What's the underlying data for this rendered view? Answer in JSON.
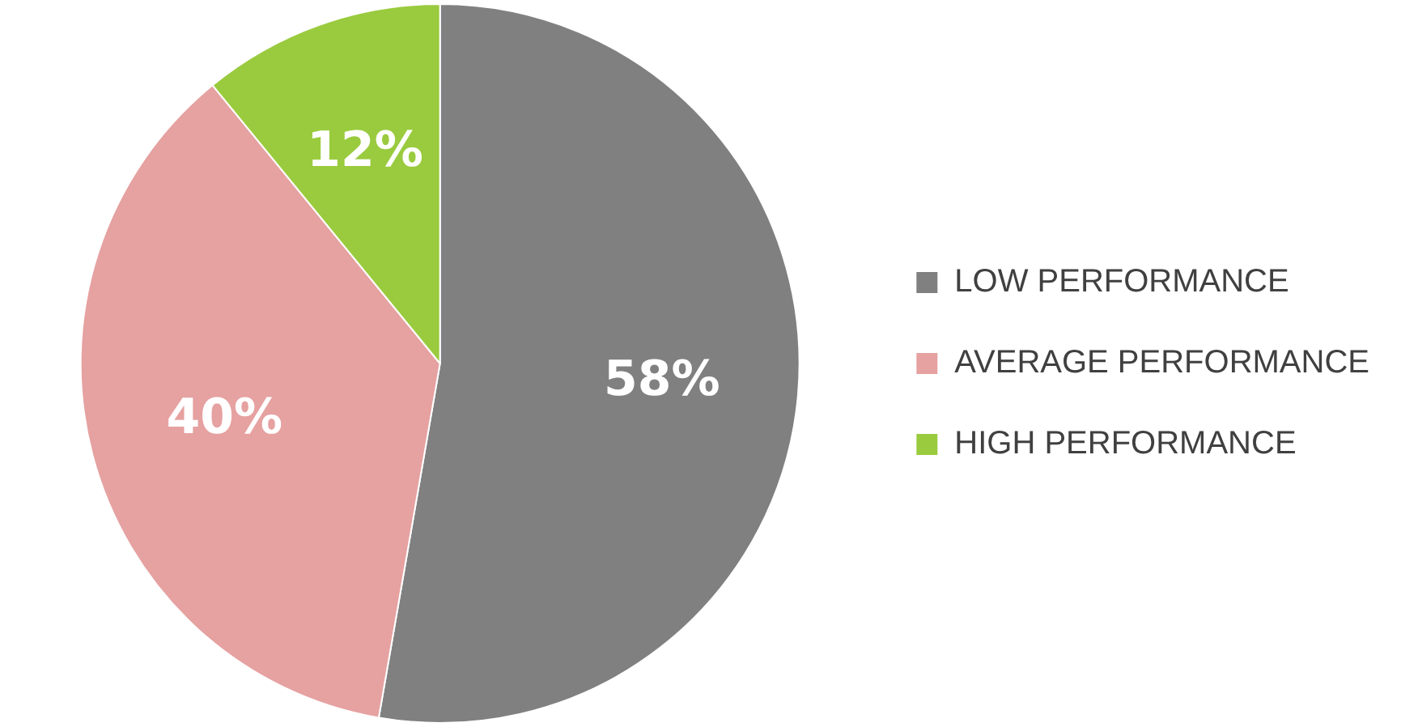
{
  "chart_data": {
    "type": "pie",
    "categories": [
      "LOW PERFORMANCE",
      "AVERAGE PERFORMANCE",
      "HIGH PERFORMANCE"
    ],
    "values": [
      58,
      40,
      12
    ],
    "colors": [
      "#808080",
      "#e6a1a1",
      "#9acb3f"
    ],
    "value_labels": [
      "58%",
      "40%",
      "12%"
    ],
    "legend": "right"
  }
}
